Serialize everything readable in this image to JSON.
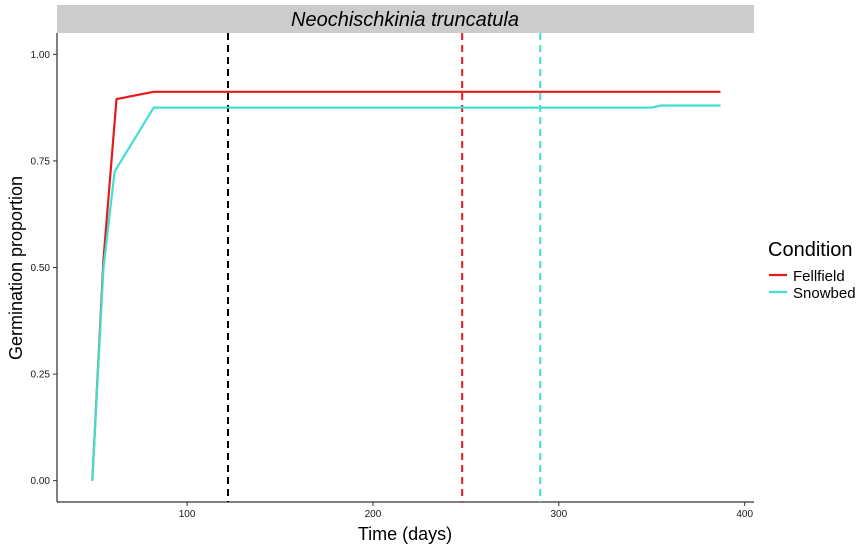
{
  "chart_data": {
    "type": "line",
    "title": "Neochischkinia truncatula",
    "xlabel": "Time (days)",
    "ylabel": "Germination proportion",
    "xlim": [
      30,
      405
    ],
    "ylim": [
      -0.05,
      1.05
    ],
    "x_ticks": [
      100,
      200,
      300,
      400
    ],
    "y_ticks": [
      0.0,
      0.25,
      0.5,
      0.75,
      1.0
    ],
    "x_tick_labels": [
      "100",
      "200",
      "300",
      "400"
    ],
    "y_tick_labels": [
      "0.00",
      "0.25",
      "0.50",
      "0.75",
      "1.00"
    ],
    "grid": false,
    "legend": {
      "title": "Condition",
      "position": "right",
      "entries": [
        "Fellfield",
        "Snowbed"
      ]
    },
    "series": [
      {
        "name": "Fellfield",
        "color": "#e41a1c",
        "x": [
          49,
          55,
          62,
          82,
          387
        ],
        "y": [
          0.0,
          0.52,
          0.895,
          0.912,
          0.912
        ]
      },
      {
        "name": "Snowbed",
        "color": "#40e0d0",
        "x": [
          49,
          55,
          61,
          82,
          350,
          355,
          387
        ],
        "y": [
          0.0,
          0.5,
          0.725,
          0.875,
          0.875,
          0.88,
          0.88
        ]
      }
    ],
    "vlines": [
      {
        "x": 122,
        "color": "#000000"
      },
      {
        "x": 248,
        "color": "#e41a1c"
      },
      {
        "x": 290,
        "color": "#40e0d0"
      }
    ]
  }
}
